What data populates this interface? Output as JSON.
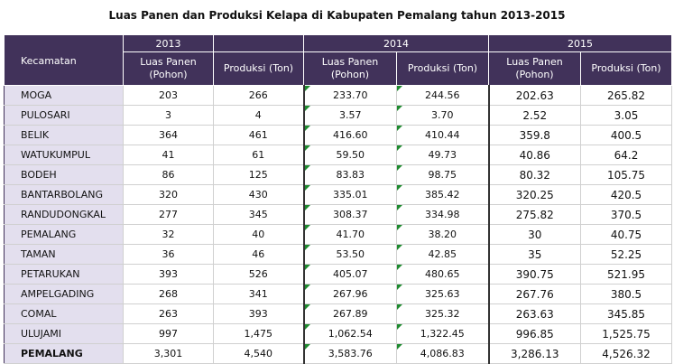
{
  "title": "Luas Panen dan Produksi Kelapa di Kabupaten Pemalang tahun 2013-2015",
  "header": {
    "kecamatan": "Kecamatan",
    "years": [
      "2013",
      "2014",
      "2015"
    ],
    "luas": "Luas Panen (Pohon)",
    "produksi": "Produksi (Ton)"
  },
  "rows": [
    {
      "name": "MOGA",
      "v": [
        "203",
        "266",
        "233.70",
        "244.56",
        "202.63",
        "265.82"
      ]
    },
    {
      "name": "PULOSARI",
      "v": [
        "3",
        "4",
        "3.57",
        "3.70",
        "2.52",
        "3.05"
      ]
    },
    {
      "name": "BELIK",
      "v": [
        "364",
        "461",
        "416.60",
        "410.44",
        "359.8",
        "400.5"
      ]
    },
    {
      "name": "WATUKUMPUL",
      "v": [
        "41",
        "61",
        "59.50",
        "49.73",
        "40.86",
        "64.2"
      ]
    },
    {
      "name": "BODEH",
      "v": [
        "86",
        "125",
        "83.83",
        "98.75",
        "80.32",
        "105.75"
      ]
    },
    {
      "name": "BANTARBOLANG",
      "v": [
        "320",
        "430",
        "335.01",
        "385.42",
        "320.25",
        "420.5"
      ]
    },
    {
      "name": "RANDUDONGKAL",
      "v": [
        "277",
        "345",
        "308.37",
        "334.98",
        "275.82",
        "370.5"
      ]
    },
    {
      "name": "PEMALANG",
      "v": [
        "32",
        "40",
        "41.70",
        "38.20",
        "30",
        "40.75"
      ]
    },
    {
      "name": "TAMAN",
      "v": [
        "36",
        "46",
        "53.50",
        "42.85",
        "35",
        "52.25"
      ]
    },
    {
      "name": "PETARUKAN",
      "v": [
        "393",
        "526",
        "405.07",
        "480.65",
        "390.75",
        "521.95"
      ]
    },
    {
      "name": "AMPELGADING",
      "v": [
        "268",
        "341",
        "267.96",
        "325.63",
        "267.76",
        "380.5"
      ]
    },
    {
      "name": "COMAL",
      "v": [
        "263",
        "393",
        "267.89",
        "325.32",
        "263.63",
        "345.85"
      ]
    },
    {
      "name": "ULUJAMI",
      "v": [
        "997",
        "1,475",
        "1,062.54",
        "1,322.45",
        "996.85",
        "1,525.75"
      ]
    },
    {
      "name": "PEMALANG",
      "v": [
        "3,301",
        "4,540",
        "3,583.76",
        "4,086.83",
        "3,286.13",
        "4,526.32"
      ]
    }
  ]
}
